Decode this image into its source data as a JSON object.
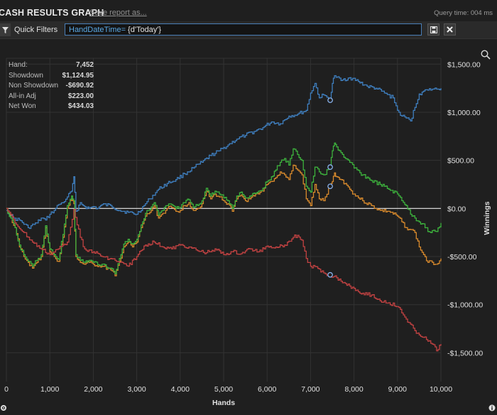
{
  "header": {
    "title": "CASH RESULTS GRAPH",
    "save_link": "Save report as...",
    "query_time": "Query time: 004 ms"
  },
  "filter": {
    "label": "Quick Filters",
    "key": "HandDateTime=",
    "value": " {d'Today'}"
  },
  "stats": [
    {
      "label": "Hand:",
      "value": "7,452"
    },
    {
      "label": "Showdown",
      "value": "$1,124.95"
    },
    {
      "label": "Non Showdown",
      "value": "-$690.92"
    },
    {
      "label": "All-in Adj",
      "value": "$223.00"
    },
    {
      "label": "Net Won",
      "value": "$434.03"
    }
  ],
  "chart_data": {
    "type": "line",
    "xlabel": "Hands",
    "ylabel": "Winnings",
    "xlim": [
      0,
      10000
    ],
    "ylim": [
      -1800,
      1650
    ],
    "x_ticks": [
      0,
      1000,
      2000,
      3000,
      4000,
      5000,
      6000,
      7000,
      8000,
      9000,
      10000
    ],
    "x_tick_labels": [
      "0",
      "1,000",
      "2,000",
      "3,000",
      "4,000",
      "5,000",
      "6,000",
      "7,000",
      "8,000",
      "9,000",
      "10,000"
    ],
    "y_ticks": [
      1500,
      1000,
      500,
      0,
      -500,
      -1000,
      -1500
    ],
    "y_tick_labels": [
      "$1,500.00",
      "$1,000.00",
      "$500.00",
      "$0.00",
      "-$500.00",
      "-$1,000.00",
      "-$1,500.00"
    ],
    "grid": true,
    "hover_x": 7452,
    "series": [
      {
        "color": "#3f7fbf",
        "marker_y": 1125,
        "x": [
          0,
          150,
          300,
          500,
          700,
          800,
          900,
          1000,
          1100,
          1200,
          1300,
          1400,
          1500,
          1550,
          1600,
          1700,
          1800,
          1900,
          2000,
          2100,
          2200,
          2400,
          2600,
          2800,
          3000,
          3200,
          3300,
          3500,
          3700,
          3900,
          4100,
          4300,
          4500,
          4700,
          4900,
          5100,
          5300,
          5500,
          5700,
          5900,
          6100,
          6300,
          6500,
          6700,
          6900,
          7000,
          7100,
          7200,
          7300,
          7452,
          7500,
          7550,
          7700,
          7900,
          8100,
          8300,
          8500,
          8700,
          8900,
          9000,
          9100,
          9200,
          9300,
          9400,
          9500,
          9600,
          9700,
          9800,
          9900,
          10000
        ],
        "y": [
          -20,
          -100,
          -120,
          -200,
          -150,
          -100,
          -120,
          -60,
          -20,
          40,
          60,
          120,
          180,
          330,
          -30,
          60,
          20,
          0,
          20,
          0,
          40,
          30,
          -20,
          -40,
          -60,
          50,
          100,
          200,
          260,
          300,
          360,
          420,
          480,
          550,
          600,
          660,
          720,
          760,
          800,
          840,
          900,
          880,
          960,
          980,
          1020,
          1200,
          1300,
          1150,
          1180,
          1125,
          1300,
          1380,
          1330,
          1360,
          1320,
          1270,
          1250,
          1200,
          1150,
          1020,
          960,
          940,
          910,
          1050,
          1190,
          1220,
          1230,
          1240,
          1240,
          1250
        ]
      },
      {
        "color": "#d98a2c",
        "marker_y": 230,
        "x": [
          0,
          100,
          200,
          300,
          400,
          500,
          600,
          700,
          800,
          900,
          1000,
          1100,
          1200,
          1300,
          1400,
          1500,
          1550,
          1600,
          1700,
          1800,
          1900,
          2000,
          2200,
          2400,
          2500,
          2600,
          2700,
          2800,
          2900,
          3000,
          3100,
          3200,
          3300,
          3400,
          3500,
          3600,
          3700,
          3800,
          3900,
          4000,
          4100,
          4200,
          4300,
          4400,
          4500,
          4600,
          4700,
          4800,
          4900,
          5000,
          5100,
          5200,
          5300,
          5400,
          5500,
          5600,
          5700,
          5800,
          5900,
          6000,
          6100,
          6200,
          6300,
          6400,
          6500,
          6600,
          6700,
          6800,
          6900,
          7000,
          7100,
          7200,
          7300,
          7452,
          7500,
          7550,
          7600,
          7700,
          7800,
          7900,
          8000,
          8200,
          8400,
          8600,
          8800,
          9000,
          9200,
          9300,
          9400,
          9500,
          9600,
          9700,
          9800,
          9900,
          10000
        ],
        "y": [
          0,
          -100,
          -200,
          -400,
          -500,
          -560,
          -620,
          -560,
          -500,
          -200,
          -450,
          -500,
          -550,
          -300,
          0,
          100,
          50,
          -500,
          -560,
          -580,
          -560,
          -580,
          -600,
          -640,
          -700,
          -550,
          -400,
          -350,
          -400,
          -350,
          -200,
          -80,
          -40,
          30,
          -100,
          -50,
          0,
          10,
          -30,
          -20,
          30,
          60,
          -20,
          0,
          50,
          180,
          100,
          150,
          120,
          80,
          50,
          -30,
          100,
          140,
          80,
          100,
          130,
          150,
          180,
          250,
          280,
          320,
          380,
          350,
          300,
          450,
          400,
          350,
          100,
          30,
          250,
          100,
          80,
          230,
          280,
          370,
          330,
          300,
          260,
          200,
          150,
          80,
          30,
          -20,
          -30,
          -80,
          -200,
          -220,
          -250,
          -400,
          -480,
          -560,
          -560,
          -580,
          -520
        ]
      },
      {
        "color": "#3db23d",
        "marker_y": 430,
        "x": [
          0,
          100,
          200,
          300,
          400,
          500,
          600,
          700,
          800,
          900,
          1000,
          1100,
          1200,
          1300,
          1400,
          1500,
          1550,
          1600,
          1700,
          1800,
          1900,
          2000,
          2200,
          2400,
          2500,
          2600,
          2700,
          2800,
          2900,
          3000,
          3100,
          3200,
          3300,
          3400,
          3500,
          3600,
          3700,
          3800,
          3900,
          4000,
          4100,
          4200,
          4300,
          4400,
          4500,
          4600,
          4700,
          4800,
          4900,
          5000,
          5100,
          5200,
          5300,
          5400,
          5500,
          5600,
          5700,
          5800,
          5900,
          6000,
          6100,
          6200,
          6300,
          6400,
          6500,
          6600,
          6700,
          6800,
          6900,
          7000,
          7100,
          7200,
          7300,
          7452,
          7500,
          7550,
          7600,
          7700,
          7800,
          7900,
          8000,
          8200,
          8400,
          8600,
          8800,
          9000,
          9200,
          9300,
          9400,
          9500,
          9600,
          9700,
          9800,
          9900,
          10000
        ],
        "y": [
          0,
          -100,
          -200,
          -380,
          -480,
          -550,
          -600,
          -540,
          -480,
          -180,
          -420,
          -480,
          -530,
          -270,
          30,
          130,
          80,
          -480,
          -540,
          -560,
          -540,
          -560,
          -580,
          -620,
          -680,
          -520,
          -370,
          -320,
          -370,
          -320,
          -170,
          -50,
          -10,
          60,
          -70,
          -20,
          30,
          40,
          0,
          10,
          60,
          90,
          10,
          30,
          80,
          210,
          130,
          180,
          150,
          110,
          80,
          0,
          130,
          170,
          110,
          130,
          160,
          180,
          210,
          280,
          330,
          400,
          480,
          520,
          450,
          620,
          560,
          500,
          230,
          170,
          430,
          380,
          350,
          430,
          600,
          680,
          640,
          580,
          520,
          480,
          420,
          350,
          290,
          250,
          200,
          150,
          30,
          -60,
          -100,
          -140,
          -160,
          -240,
          -230,
          -240,
          -150
        ]
      },
      {
        "color": "#c24242",
        "marker_y": -690,
        "x": [
          0,
          200,
          400,
          600,
          800,
          1000,
          1200,
          1400,
          1550,
          1700,
          1800,
          2000,
          2200,
          2400,
          2600,
          2800,
          3000,
          3200,
          3400,
          3600,
          3800,
          4000,
          4200,
          4400,
          4600,
          4800,
          5000,
          5200,
          5400,
          5600,
          5800,
          6000,
          6200,
          6400,
          6500,
          6600,
          6700,
          6800,
          6900,
          7000,
          7200,
          7300,
          7452,
          7600,
          7800,
          8000,
          8200,
          8400,
          8600,
          8800,
          9000,
          9200,
          9400,
          9600,
          9700,
          9800,
          9900,
          10000
        ],
        "y": [
          0,
          -150,
          -250,
          -350,
          -420,
          -480,
          -420,
          -350,
          -10,
          -300,
          -420,
          -450,
          -500,
          -520,
          -560,
          -600,
          -500,
          -380,
          -350,
          -400,
          -420,
          -380,
          -400,
          -440,
          -460,
          -420,
          -480,
          -450,
          -470,
          -420,
          -450,
          -390,
          -400,
          -380,
          -340,
          -300,
          -280,
          -330,
          -520,
          -600,
          -630,
          -670,
          -690,
          -720,
          -780,
          -830,
          -880,
          -900,
          -960,
          -980,
          -1020,
          -1150,
          -1270,
          -1340,
          -1380,
          -1410,
          -1480,
          -1410
        ]
      }
    ]
  }
}
